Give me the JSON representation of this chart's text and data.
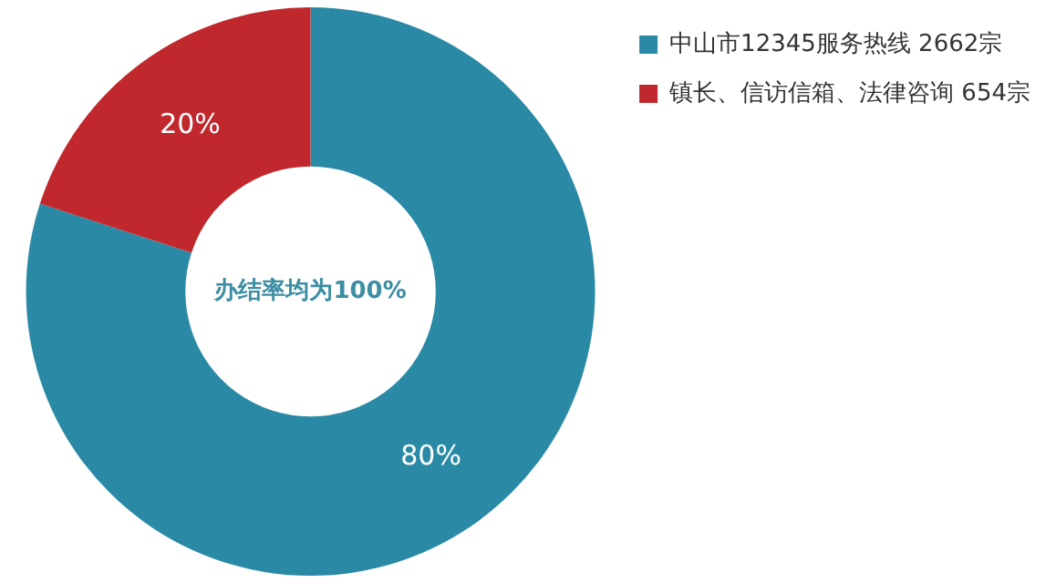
{
  "chart_data": {
    "type": "donut",
    "categories": [
      "中山市12345服务热线 2662宗",
      "镇长、信访信箱、法律咨询 654宗"
    ],
    "values": [
      80,
      20
    ],
    "colors": [
      "#2a8aa6",
      "#c0282d"
    ],
    "value_labels": [
      "80%",
      "20%"
    ],
    "annotations": [
      "办结率均为100%"
    ],
    "legend": "top right"
  }
}
